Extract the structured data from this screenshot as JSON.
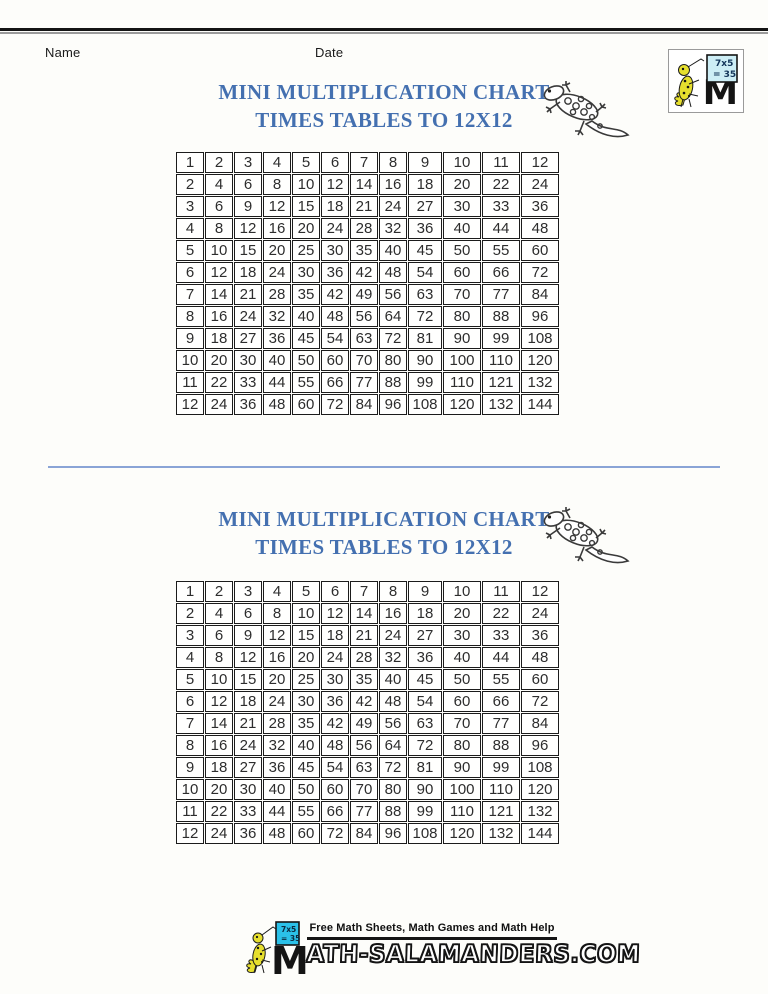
{
  "header": {
    "name_label": "Name",
    "date_label": "Date"
  },
  "sections": [
    {
      "title_line1": "MINI MULTIPLICATION CHART",
      "title_line2": "TIMES TABLES TO 12X12"
    },
    {
      "title_line1": "MINI MULTIPLICATION CHART",
      "title_line2": "TIMES TABLES TO 12X12"
    }
  ],
  "grid": {
    "rows": [
      [
        1,
        2,
        3,
        4,
        5,
        6,
        7,
        8,
        9,
        10,
        11,
        12
      ],
      [
        2,
        4,
        6,
        8,
        10,
        12,
        14,
        16,
        18,
        20,
        22,
        24
      ],
      [
        3,
        6,
        9,
        12,
        15,
        18,
        21,
        24,
        27,
        30,
        33,
        36
      ],
      [
        4,
        8,
        12,
        16,
        20,
        24,
        28,
        32,
        36,
        40,
        44,
        48
      ],
      [
        5,
        10,
        15,
        20,
        25,
        30,
        35,
        40,
        45,
        50,
        55,
        60
      ],
      [
        6,
        12,
        18,
        24,
        30,
        36,
        42,
        48,
        54,
        60,
        66,
        72
      ],
      [
        7,
        14,
        21,
        28,
        35,
        42,
        49,
        56,
        63,
        70,
        77,
        84
      ],
      [
        8,
        16,
        24,
        32,
        40,
        48,
        56,
        64,
        72,
        80,
        88,
        96
      ],
      [
        9,
        18,
        27,
        36,
        45,
        54,
        63,
        72,
        81,
        90,
        99,
        108
      ],
      [
        10,
        20,
        30,
        40,
        50,
        60,
        70,
        80,
        90,
        100,
        110,
        120
      ],
      [
        11,
        22,
        33,
        44,
        55,
        66,
        77,
        88,
        99,
        110,
        121,
        132
      ],
      [
        12,
        24,
        36,
        48,
        60,
        72,
        84,
        96,
        108,
        120,
        132,
        144
      ]
    ]
  },
  "site_logo": {
    "board_line1": "7x5",
    "board_line2": "= 35",
    "letter": "M"
  },
  "footer": {
    "tagline": "Free Math Sheets, Math Games and Math Help",
    "wordmark_m": "M",
    "wordmark_rest": "ATH-SALAMANDERS.COM",
    "board_line1": "7x5",
    "board_line2": "= 35"
  },
  "colors": {
    "title_blue": "#4470b0",
    "divider_blue": "#8aa4d6",
    "board_cyan": "#2bc1e9",
    "board_pale_cyan": "#cdeef6",
    "salamander_yellow": "#e6df2e"
  }
}
